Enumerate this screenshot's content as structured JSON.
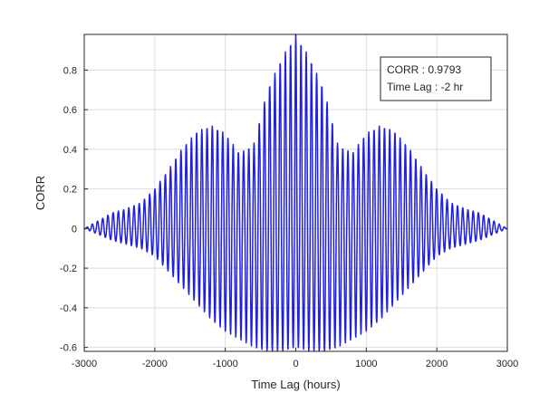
{
  "chart_data": {
    "type": "line",
    "xlabel": "Time Lag (hours)",
    "ylabel": "CORR",
    "xlim": [
      -3000,
      3000
    ],
    "ylim": [
      -0.62,
      0.98
    ],
    "xticks": [
      -3000,
      -2000,
      -1000,
      0,
      1000,
      2000,
      3000
    ],
    "xtick_labels": [
      "-3000",
      "-2000",
      "-1000",
      "0",
      "1000",
      "2000",
      "3000"
    ],
    "yticks": [
      -0.6,
      -0.4,
      -0.2,
      0,
      0.2,
      0.4,
      0.6,
      0.8
    ],
    "ytick_labels": [
      "-0.6",
      "-0.4",
      "-0.2",
      "0",
      "0.2",
      "0.4",
      "0.6",
      "0.8"
    ],
    "grid": true,
    "line_color": "#1f1fe0",
    "oscillation_period_hours": 74,
    "envelope_upper": {
      "x": [
        -3000,
        -2800,
        -2600,
        -2400,
        -2200,
        -2000,
        -1800,
        -1600,
        -1400,
        -1200,
        -1000,
        -800,
        -600,
        -400,
        -200,
        0,
        200,
        400,
        600,
        800,
        1000,
        1200,
        1400,
        1600,
        1800,
        2000,
        2200,
        2400,
        2600,
        2800,
        3000
      ],
      "y": [
        0.0,
        0.04,
        0.08,
        0.1,
        0.13,
        0.2,
        0.3,
        0.41,
        0.49,
        0.52,
        0.48,
        0.38,
        0.42,
        0.7,
        0.86,
        0.98,
        0.86,
        0.7,
        0.42,
        0.38,
        0.48,
        0.52,
        0.49,
        0.41,
        0.3,
        0.2,
        0.13,
        0.1,
        0.08,
        0.04,
        0.0
      ]
    },
    "envelope_lower": {
      "x": [
        -3000,
        -2800,
        -2600,
        -2400,
        -2200,
        -2000,
        -1800,
        -1600,
        -1400,
        -1200,
        -1000,
        -800,
        -600,
        -400,
        -200,
        0,
        200,
        400,
        600,
        800,
        1000,
        1200,
        1400,
        1600,
        1800,
        2000,
        2200,
        2400,
        2600,
        2800,
        3000
      ],
      "y": [
        0.0,
        -0.03,
        -0.06,
        -0.08,
        -0.1,
        -0.14,
        -0.22,
        -0.3,
        -0.38,
        -0.46,
        -0.52,
        -0.56,
        -0.6,
        -0.62,
        -0.62,
        -0.6,
        -0.62,
        -0.62,
        -0.6,
        -0.56,
        -0.52,
        -0.46,
        -0.38,
        -0.3,
        -0.22,
        -0.14,
        -0.1,
        -0.08,
        -0.06,
        -0.03,
        0.0
      ]
    },
    "annotation": {
      "lines": [
        "CORR : 0.9793",
        "Time Lag : -2 hr"
      ]
    }
  }
}
